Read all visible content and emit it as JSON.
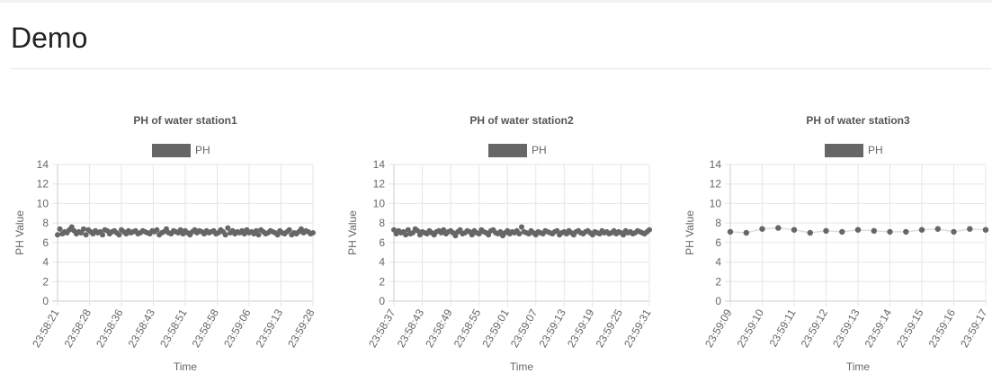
{
  "page": {
    "title": "Demo"
  },
  "chart_data": [
    {
      "type": "line",
      "title": "PH of water station1",
      "xlabel": "Time",
      "ylabel": "PH Value",
      "ylim": [
        0,
        14
      ],
      "yticks": [
        0,
        2,
        4,
        6,
        8,
        10,
        12,
        14
      ],
      "grid": true,
      "legend": "top",
      "line_color": "#dddddd",
      "point_color": "#666666",
      "tick_labels": [
        "23:58:21",
        "23:58:28",
        "23:58:36",
        "23:58:43",
        "23:58:51",
        "23:58:58",
        "23:59:06",
        "23:59:13",
        "23:59:28"
      ],
      "series": [
        {
          "name": "PH",
          "values": [
            6.8,
            7.4,
            6.9,
            7.1,
            7.0,
            7.3,
            7.6,
            7.2,
            6.9,
            7.1,
            7.0,
            7.4,
            6.8,
            7.3,
            7.1,
            6.9,
            7.2,
            7.0,
            7.1,
            6.8,
            7.3,
            7.2,
            6.9,
            7.1,
            7.2,
            7.0,
            6.8,
            7.3,
            7.1,
            6.9,
            7.2,
            7.0,
            7.1,
            7.2,
            6.9,
            7.0,
            7.2,
            7.1,
            7.0,
            6.9,
            7.2,
            7.1,
            7.3,
            6.8,
            7.0,
            7.1,
            7.4,
            7.0,
            6.9,
            7.2,
            7.1,
            7.0,
            7.3,
            6.9,
            7.2,
            7.0,
            6.8,
            7.1,
            7.3,
            7.0,
            7.2,
            7.1,
            6.9,
            7.2,
            7.0,
            7.1,
            7.2,
            6.9,
            7.0,
            7.3,
            7.1,
            6.8,
            7.5,
            7.0,
            7.2,
            6.9,
            7.1,
            7.0,
            7.2,
            6.9,
            7.3,
            7.0,
            7.1,
            6.9,
            7.2,
            6.8,
            7.3,
            7.1,
            6.9,
            7.0,
            7.2,
            7.1,
            7.0,
            6.8,
            7.2,
            7.0,
            6.9,
            7.1,
            7.3,
            6.8,
            7.0,
            6.9,
            7.1,
            7.4,
            7.0,
            7.2,
            7.1,
            6.9,
            7.0
          ]
        }
      ]
    },
    {
      "type": "line",
      "title": "PH of water station2",
      "xlabel": "Time",
      "ylabel": "PH Value",
      "ylim": [
        0,
        14
      ],
      "yticks": [
        0,
        2,
        4,
        6,
        8,
        10,
        12,
        14
      ],
      "grid": true,
      "legend": "top",
      "line_color": "#dddddd",
      "point_color": "#666666",
      "tick_labels": [
        "23:58:37",
        "23:58:43",
        "23:58:49",
        "23:58:55",
        "23:59:01",
        "23:59:07",
        "23:59:13",
        "23:59:19",
        "23:59:25",
        "23:59:31"
      ],
      "series": [
        {
          "name": "PH",
          "values": [
            7.3,
            6.9,
            7.2,
            7.0,
            7.1,
            6.8,
            7.3,
            6.9,
            7.0,
            7.4,
            7.2,
            6.8,
            7.1,
            7.0,
            6.9,
            7.2,
            7.0,
            6.8,
            7.1,
            7.2,
            7.0,
            7.3,
            6.9,
            7.1,
            7.2,
            7.0,
            6.7,
            7.1,
            7.3,
            6.9,
            7.0,
            7.2,
            7.1,
            6.8,
            7.2,
            7.0,
            6.9,
            7.3,
            7.1,
            7.0,
            6.8,
            7.2,
            7.3,
            7.0,
            6.9,
            7.1,
            6.7,
            7.0,
            7.2,
            6.9,
            7.1,
            7.0,
            7.2,
            6.9,
            7.6,
            7.1,
            7.0,
            6.9,
            7.2,
            7.0,
            6.8,
            7.1,
            7.0,
            6.9,
            7.2,
            7.1,
            7.0,
            6.9,
            7.1,
            7.2,
            6.8,
            7.0,
            7.1,
            6.9,
            7.2,
            7.0,
            6.8,
            7.1,
            7.2,
            7.0,
            6.9,
            7.1,
            7.2,
            7.0,
            6.8,
            7.1,
            7.0,
            6.9,
            7.2,
            7.0,
            7.1,
            6.9,
            7.0,
            7.2,
            6.9,
            7.1,
            7.0,
            6.8,
            7.2,
            7.0,
            7.1,
            6.9,
            7.0,
            7.2,
            7.1,
            7.0,
            6.9,
            7.1,
            7.3
          ]
        }
      ]
    },
    {
      "type": "line",
      "title": "PH of water station3",
      "xlabel": "Time",
      "ylabel": "PH Value",
      "ylim": [
        0,
        14
      ],
      "yticks": [
        0,
        2,
        4,
        6,
        8,
        10,
        12,
        14
      ],
      "grid": true,
      "legend": "top",
      "line_color": "#dddddd",
      "point_color": "#666666",
      "tick_labels": [
        "23:59:09",
        "23:59:10",
        "23:59:11",
        "23:59:12",
        "23:59:13",
        "23:59:14",
        "23:59:15",
        "23:59:16",
        "23:59:17"
      ],
      "series": [
        {
          "name": "PH",
          "values": [
            7.1,
            7.0,
            7.4,
            7.5,
            7.3,
            7.0,
            7.2,
            7.1,
            7.3,
            7.2,
            7.1,
            7.1,
            7.3,
            7.4,
            7.1,
            7.4,
            7.3
          ]
        }
      ]
    }
  ]
}
